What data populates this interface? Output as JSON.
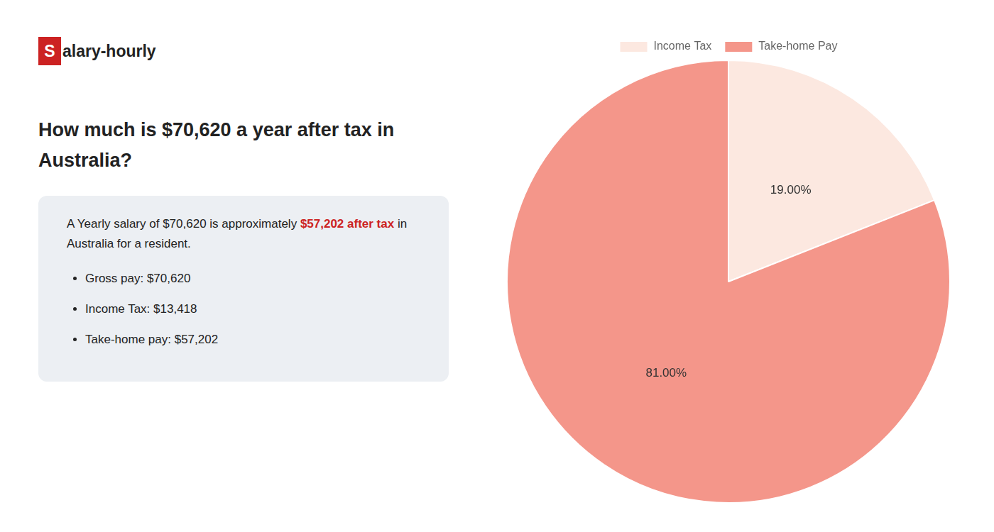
{
  "chart_data": {
    "type": "pie",
    "title": [
      "How much is $70,620 a year after tax in",
      "Australia?"
    ],
    "categories": [
      "Income Tax",
      "Take-home Pay"
    ],
    "values": [
      19.0,
      81.0
    ],
    "value_labels": [
      "19.00%",
      "81.00%"
    ],
    "colors": [
      "#fce8e0",
      "#f4968a"
    ],
    "data_labels": true,
    "legend": "top",
    "annotations": [
      [
        {
          "text": "S",
          "color": "#cc2222"
        },
        {
          "text": "alary-hourly"
        }
      ],
      [
        {
          "text": "A Yearly salary of $70,620 is approximately "
        },
        {
          "text": "$57,202 after tax",
          "color": "#cc2222"
        },
        {
          "text": " in"
        }
      ],
      [
        {
          "text": "Australia for a resident."
        }
      ],
      [
        {
          "text": "Gross pay: $70,620"
        }
      ],
      [
        {
          "text": "Income Tax: $13,418"
        }
      ],
      [
        {
          "text": "Take-home pay: $57,202"
        }
      ]
    ]
  }
}
